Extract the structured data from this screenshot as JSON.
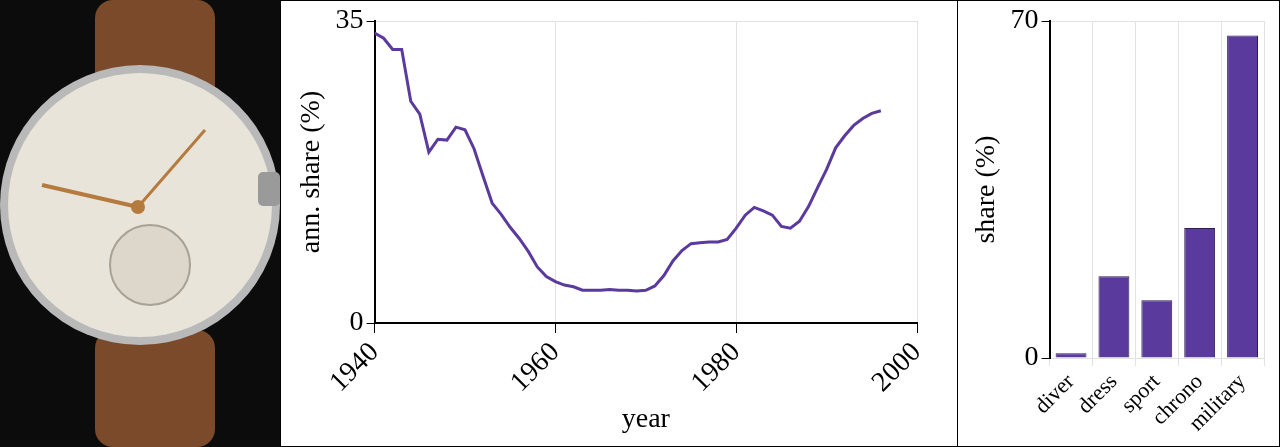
{
  "chart_data": [
    {
      "type": "line",
      "x_label": "year",
      "y_label": "ann. share (%)",
      "x": [
        1940,
        1941,
        1942,
        1943,
        1944,
        1945,
        1946,
        1947,
        1948,
        1949,
        1950,
        1951,
        1952,
        1953,
        1954,
        1955,
        1956,
        1957,
        1958,
        1959,
        1960,
        1961,
        1962,
        1963,
        1964,
        1965,
        1966,
        1967,
        1968,
        1969,
        1970,
        1971,
        1972,
        1973,
        1974,
        1975,
        1976,
        1977,
        1978,
        1979,
        1980,
        1981,
        1982,
        1983,
        1984,
        1985,
        1986,
        1987,
        1988,
        1989,
        1990,
        1991,
        1992,
        1993,
        1994,
        1995,
        1996
      ],
      "values": [
        33.6,
        33.0,
        31.7,
        31.7,
        25.7,
        24.2,
        19.8,
        21.3,
        21.2,
        22.7,
        22.4,
        20.2,
        17.0,
        13.9,
        12.6,
        11.1,
        9.8,
        8.3,
        6.5,
        5.4,
        4.8,
        4.4,
        4.2,
        3.8,
        3.8,
        3.8,
        3.9,
        3.8,
        3.8,
        3.7,
        3.8,
        4.3,
        5.5,
        7.2,
        8.4,
        9.2,
        9.3,
        9.4,
        9.4,
        9.7,
        11.0,
        12.5,
        13.4,
        13.0,
        12.5,
        11.2,
        11.0,
        11.8,
        13.5,
        15.7,
        17.8,
        20.3,
        21.7,
        22.9,
        23.7,
        24.3,
        24.6
      ],
      "color": "#5b3a9e",
      "xlim": [
        1940,
        2000
      ],
      "xticks": [
        1940,
        1960,
        1980,
        2000
      ],
      "ylim": [
        0,
        35
      ],
      "yticks": [
        0,
        35
      ],
      "grid": true
    },
    {
      "type": "bar",
      "y_label": "share (%)",
      "categories": [
        "diver",
        "dress",
        "sport",
        "chrono",
        "military"
      ],
      "values": [
        1,
        17,
        12,
        27,
        67
      ],
      "color": "#5b3a9e",
      "ylim": [
        0,
        70
      ],
      "yticks": [
        0,
        70
      ],
      "grid": true
    }
  ]
}
